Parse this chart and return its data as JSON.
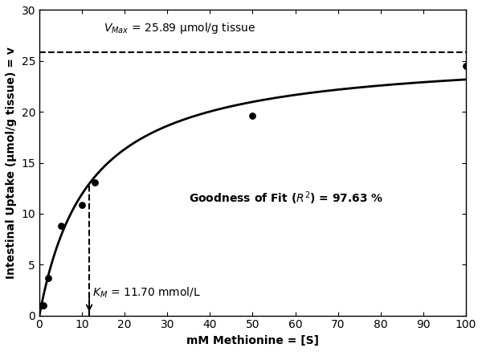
{
  "vmax": 25.89,
  "km": 11.7,
  "scatter_x": [
    0.5,
    1.0,
    2.0,
    5.0,
    10.0,
    13.0,
    50.0,
    100.0
  ],
  "scatter_y": [
    1.0,
    1.0,
    3.7,
    8.8,
    10.9,
    13.1,
    19.6,
    24.5
  ],
  "xlim": [
    0,
    100
  ],
  "ylim": [
    0,
    30
  ],
  "xticks": [
    0,
    10,
    20,
    30,
    40,
    50,
    60,
    70,
    80,
    90,
    100
  ],
  "yticks": [
    0,
    5,
    10,
    15,
    20,
    25,
    30
  ],
  "xlabel": "mM Methionine = [S]",
  "ylabel": "Intestinal Uptake (μmol/g tissue) = v",
  "vmax_value_str": " = 25.89 μmol/g tissue",
  "km_value_str": " = 11.70 mmol/L",
  "gof_line1": "Goodness of Fit (",
  "gof_r2": "R²",
  "gof_line2": ") = 97.63 %",
  "curve_color": "#000000",
  "scatter_color": "#000000",
  "dashed_color": "#000000",
  "background_color": "#ffffff",
  "label_fontsize": 10,
  "tick_fontsize": 10,
  "annotation_fontsize": 10,
  "gof_fontsize": 10
}
